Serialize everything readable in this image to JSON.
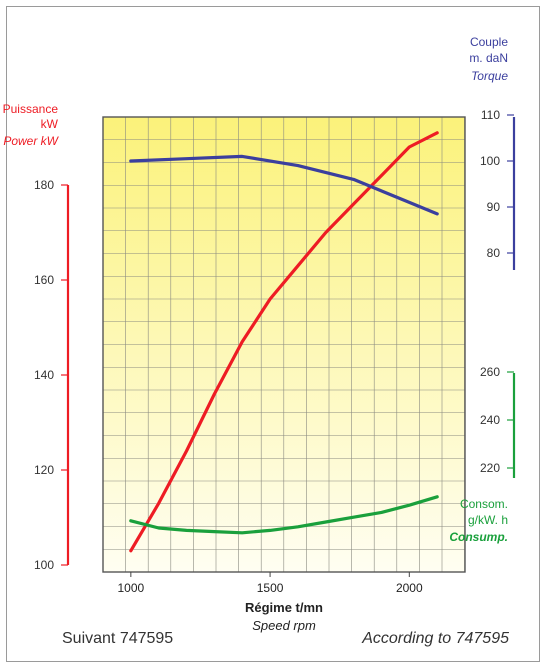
{
  "chart_data": {
    "type": "line",
    "x_axis": {
      "label": "Régime t/mn",
      "label_en": "Speed rpm",
      "ticks": [
        1000,
        1500,
        2000
      ],
      "range": [
        900,
        2200
      ]
    },
    "axes": {
      "power": {
        "label": [
          "Puissance",
          "kW",
          "Power kW"
        ],
        "ticks": [
          100,
          120,
          140,
          160,
          180
        ],
        "range": [
          100,
          200
        ],
        "color": "#ee1c24"
      },
      "torque": {
        "label": [
          "Couple",
          "m. daN",
          "Torque"
        ],
        "ticks": [
          80,
          90,
          100,
          110
        ],
        "range": [
          80,
          110
        ],
        "color": "#3b3f9e"
      },
      "consumption": {
        "label": [
          "Consom.",
          "g/kW. h",
          "Consump."
        ],
        "ticks": [
          220,
          240,
          260
        ],
        "range": [
          220,
          260
        ],
        "color": "#1aa03c"
      }
    },
    "grid": true,
    "background_gradient": [
      "#fbf27a",
      "#fffef2"
    ],
    "series": [
      {
        "axis": "power",
        "color": "#ee1c24",
        "x": [
          1000,
          1100,
          1200,
          1300,
          1400,
          1500,
          1600,
          1700,
          1800,
          1900,
          2000,
          2100
        ],
        "y": [
          103,
          113,
          124,
          136,
          147,
          156,
          163,
          170,
          176,
          182,
          188,
          191
        ]
      },
      {
        "axis": "torque",
        "color": "#3b3f9e",
        "x": [
          1000,
          1200,
          1400,
          1600,
          1800,
          2000,
          2100
        ],
        "y": [
          100,
          100.5,
          101,
          99,
          96,
          91,
          88.5
        ]
      },
      {
        "axis": "consumption",
        "color": "#1aa03c",
        "x": [
          1000,
          1100,
          1200,
          1300,
          1400,
          1500,
          1600,
          1700,
          1800,
          1900,
          2000,
          2100
        ],
        "y": [
          198,
          195,
          194,
          193.5,
          193,
          194,
          195.5,
          197.5,
          199.5,
          201.5,
          204.5,
          208
        ]
      }
    ]
  },
  "footer": {
    "left": "Suivant 747595",
    "right": "According to 747595"
  }
}
